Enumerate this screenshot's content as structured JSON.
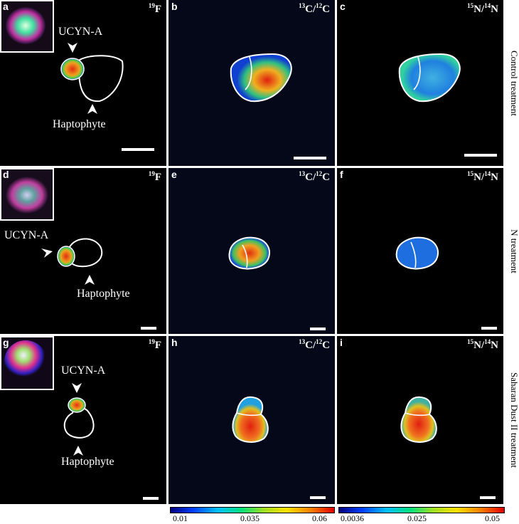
{
  "panels": [
    {
      "letter": "a",
      "iso_a": "19",
      "iso_b": "F",
      "iso_c": "",
      "iso_d": ""
    },
    {
      "letter": "b",
      "iso_a": "13",
      "iso_b": "C/",
      "iso_c": "12",
      "iso_d": "C"
    },
    {
      "letter": "c",
      "iso_a": "15",
      "iso_b": "N/",
      "iso_c": "14",
      "iso_d": "N"
    },
    {
      "letter": "d",
      "iso_a": "19",
      "iso_b": "F",
      "iso_c": "",
      "iso_d": ""
    },
    {
      "letter": "e",
      "iso_a": "13",
      "iso_b": "C/",
      "iso_c": "12",
      "iso_d": "C"
    },
    {
      "letter": "f",
      "iso_a": "15",
      "iso_b": "N/",
      "iso_c": "14",
      "iso_d": "N"
    },
    {
      "letter": "g",
      "iso_a": "19",
      "iso_b": "F",
      "iso_c": "",
      "iso_d": ""
    },
    {
      "letter": "h",
      "iso_a": "13",
      "iso_b": "C/",
      "iso_c": "12",
      "iso_d": "C"
    },
    {
      "letter": "i",
      "iso_a": "15",
      "iso_b": "N/",
      "iso_c": "14",
      "iso_d": "N"
    }
  ],
  "annotations": {
    "ucyn": "UCYN-A",
    "hapto": "Haptophyte"
  },
  "rows": [
    {
      "label": "Control treatment"
    },
    {
      "label": "N treatment"
    },
    {
      "label": "Saharan Dust II treatment"
    }
  ],
  "colorbars": [
    {
      "ticks": [
        "0.01",
        "0.035",
        "0.06"
      ]
    },
    {
      "ticks": [
        "0.0036",
        "0.025",
        "0.05"
      ]
    }
  ],
  "colors": {
    "background": "#000000",
    "outline": "#ffffff",
    "low": "#1030c0",
    "high": "#e02010"
  }
}
